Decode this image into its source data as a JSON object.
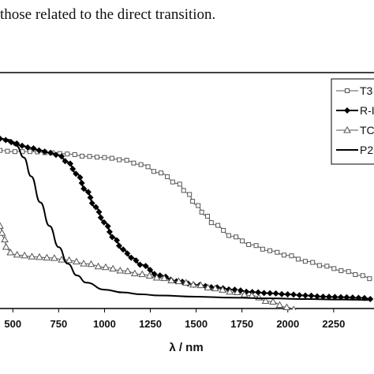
{
  "page": {
    "caption": "those related to the direct transition."
  },
  "chart_data": {
    "type": "line",
    "title": "",
    "xlabel": "λ / nm",
    "ylabel": "",
    "xlim": [
      430,
      2470
    ],
    "ylim": [
      0,
      1
    ],
    "x_ticks": [
      500,
      750,
      1000,
      1250,
      1500,
      1750,
      2000,
      2250
    ],
    "x_tick_labels": [
      "500",
      "750",
      "1000",
      "1250",
      "1500",
      "1750",
      "2000",
      "2250"
    ],
    "grid": false,
    "legend_position": "top-right",
    "series": [
      {
        "name": "T3",
        "marker": "square",
        "color": "#555555",
        "x": [
          430,
          500,
          600,
          700,
          800,
          900,
          1000,
          1100,
          1200,
          1300,
          1400,
          1450,
          1500,
          1550,
          1600,
          1700,
          1800,
          1900,
          2000,
          2100,
          2200,
          2300,
          2400,
          2460
        ],
        "y": [
          0.67,
          0.665,
          0.665,
          0.66,
          0.655,
          0.645,
          0.64,
          0.63,
          0.61,
          0.575,
          0.53,
          0.49,
          0.44,
          0.395,
          0.355,
          0.305,
          0.27,
          0.245,
          0.225,
          0.2,
          0.18,
          0.16,
          0.14,
          0.125
        ]
      },
      {
        "name": "R-I",
        "marker": "diamond",
        "color": "#000000",
        "x": [
          430,
          500,
          550,
          600,
          650,
          700,
          750,
          800,
          850,
          900,
          950,
          1000,
          1050,
          1100,
          1150,
          1200,
          1300,
          1400,
          1500,
          1600,
          1700,
          1800,
          1900,
          2000,
          2100,
          2200,
          2300,
          2400,
          2460
        ],
        "y": [
          0.72,
          0.705,
          0.69,
          0.68,
          0.67,
          0.66,
          0.65,
          0.62,
          0.57,
          0.5,
          0.43,
          0.365,
          0.3,
          0.25,
          0.215,
          0.185,
          0.14,
          0.115,
          0.1,
          0.09,
          0.08,
          0.07,
          0.065,
          0.06,
          0.055,
          0.05,
          0.048,
          0.045,
          0.04
        ]
      },
      {
        "name": "TC",
        "marker": "triangle",
        "color": "#555555",
        "x": [
          430,
          450,
          470,
          500,
          550,
          600,
          700,
          800,
          900,
          1000,
          1100,
          1200,
          1300,
          1400,
          1500,
          1600,
          1700,
          1800,
          1900,
          2000,
          2040
        ],
        "y": [
          0.35,
          0.3,
          0.25,
          0.23,
          0.225,
          0.22,
          0.215,
          0.205,
          0.19,
          0.175,
          0.16,
          0.145,
          0.13,
          0.115,
          0.1,
          0.085,
          0.07,
          0.055,
          0.03,
          0.005,
          -0.005
        ]
      },
      {
        "name": "P2",
        "marker": "none",
        "color": "#000000",
        "x": [
          430,
          480,
          520,
          560,
          600,
          650,
          700,
          750,
          800,
          850,
          900,
          1000,
          1100,
          1200,
          1300,
          1500,
          1700,
          1900,
          2100,
          2300,
          2460
        ],
        "y": [
          0.72,
          0.715,
          0.69,
          0.64,
          0.56,
          0.45,
          0.35,
          0.26,
          0.19,
          0.14,
          0.11,
          0.08,
          0.068,
          0.06,
          0.055,
          0.05,
          0.046,
          0.043,
          0.04,
          0.038,
          0.036
        ]
      }
    ]
  }
}
